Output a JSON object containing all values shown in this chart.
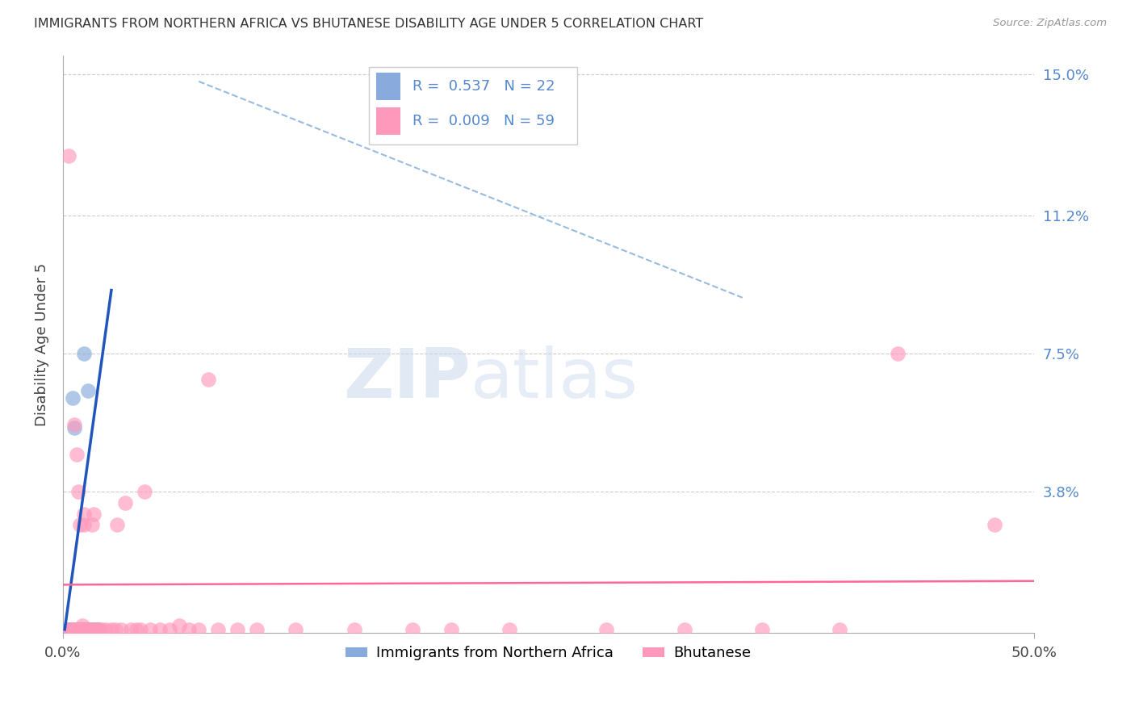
{
  "title": "IMMIGRANTS FROM NORTHERN AFRICA VS BHUTANESE DISABILITY AGE UNDER 5 CORRELATION CHART",
  "source": "Source: ZipAtlas.com",
  "ylabel": "Disability Age Under 5",
  "xlim": [
    0.0,
    0.5
  ],
  "ylim": [
    0.0,
    0.155
  ],
  "ytick_labels_right": [
    "15.0%",
    "11.2%",
    "7.5%",
    "3.8%"
  ],
  "ytick_vals_right": [
    0.15,
    0.112,
    0.075,
    0.038
  ],
  "watermark_zip": "ZIP",
  "watermark_atlas": "atlas",
  "legend_line1": "R =  0.537   N = 22",
  "legend_line2": "R =  0.009   N = 59",
  "color_blue": "#88AADD",
  "color_pink": "#FF99BB",
  "color_blue_line": "#2255BB",
  "color_pink_line": "#FF6699",
  "color_dashed": "#99BBDD",
  "color_axis_label": "#5588CC",
  "blue_scatter_x": [
    0.002,
    0.002,
    0.003,
    0.003,
    0.004,
    0.005,
    0.005,
    0.006,
    0.006,
    0.007,
    0.008,
    0.008,
    0.009,
    0.01,
    0.011,
    0.011,
    0.012,
    0.013,
    0.014,
    0.015,
    0.016,
    0.018
  ],
  "blue_scatter_y": [
    0.001,
    0.0,
    0.001,
    0.0,
    0.001,
    0.063,
    0.001,
    0.055,
    0.001,
    0.001,
    0.001,
    0.001,
    0.001,
    0.001,
    0.075,
    0.001,
    0.001,
    0.065,
    0.001,
    0.001,
    0.001,
    0.001
  ],
  "pink_scatter_x": [
    0.003,
    0.004,
    0.004,
    0.005,
    0.005,
    0.006,
    0.006,
    0.007,
    0.007,
    0.008,
    0.008,
    0.009,
    0.009,
    0.01,
    0.01,
    0.011,
    0.011,
    0.012,
    0.013,
    0.014,
    0.015,
    0.016,
    0.016,
    0.017,
    0.018,
    0.018,
    0.019,
    0.02,
    0.022,
    0.025,
    0.027,
    0.028,
    0.03,
    0.032,
    0.035,
    0.038,
    0.04,
    0.042,
    0.045,
    0.05,
    0.055,
    0.06,
    0.065,
    0.07,
    0.075,
    0.08,
    0.09,
    0.1,
    0.12,
    0.15,
    0.18,
    0.2,
    0.23,
    0.28,
    0.32,
    0.36,
    0.4,
    0.43,
    0.48
  ],
  "pink_scatter_y": [
    0.128,
    0.001,
    0.001,
    0.001,
    0.001,
    0.001,
    0.056,
    0.001,
    0.048,
    0.001,
    0.038,
    0.001,
    0.029,
    0.001,
    0.002,
    0.032,
    0.029,
    0.001,
    0.001,
    0.001,
    0.029,
    0.001,
    0.032,
    0.001,
    0.001,
    0.001,
    0.001,
    0.001,
    0.001,
    0.001,
    0.001,
    0.029,
    0.001,
    0.035,
    0.001,
    0.001,
    0.001,
    0.038,
    0.001,
    0.001,
    0.001,
    0.002,
    0.001,
    0.001,
    0.068,
    0.001,
    0.001,
    0.001,
    0.001,
    0.001,
    0.001,
    0.001,
    0.001,
    0.001,
    0.001,
    0.001,
    0.001,
    0.075,
    0.029
  ],
  "blue_line_x": [
    0.001,
    0.025
  ],
  "blue_line_y": [
    0.001,
    0.092
  ],
  "pink_line_x": [
    0.0,
    0.5
  ],
  "pink_line_y": [
    0.013,
    0.014
  ],
  "dashed_line_x": [
    0.07,
    0.35
  ],
  "dashed_line_y": [
    0.148,
    0.09
  ]
}
